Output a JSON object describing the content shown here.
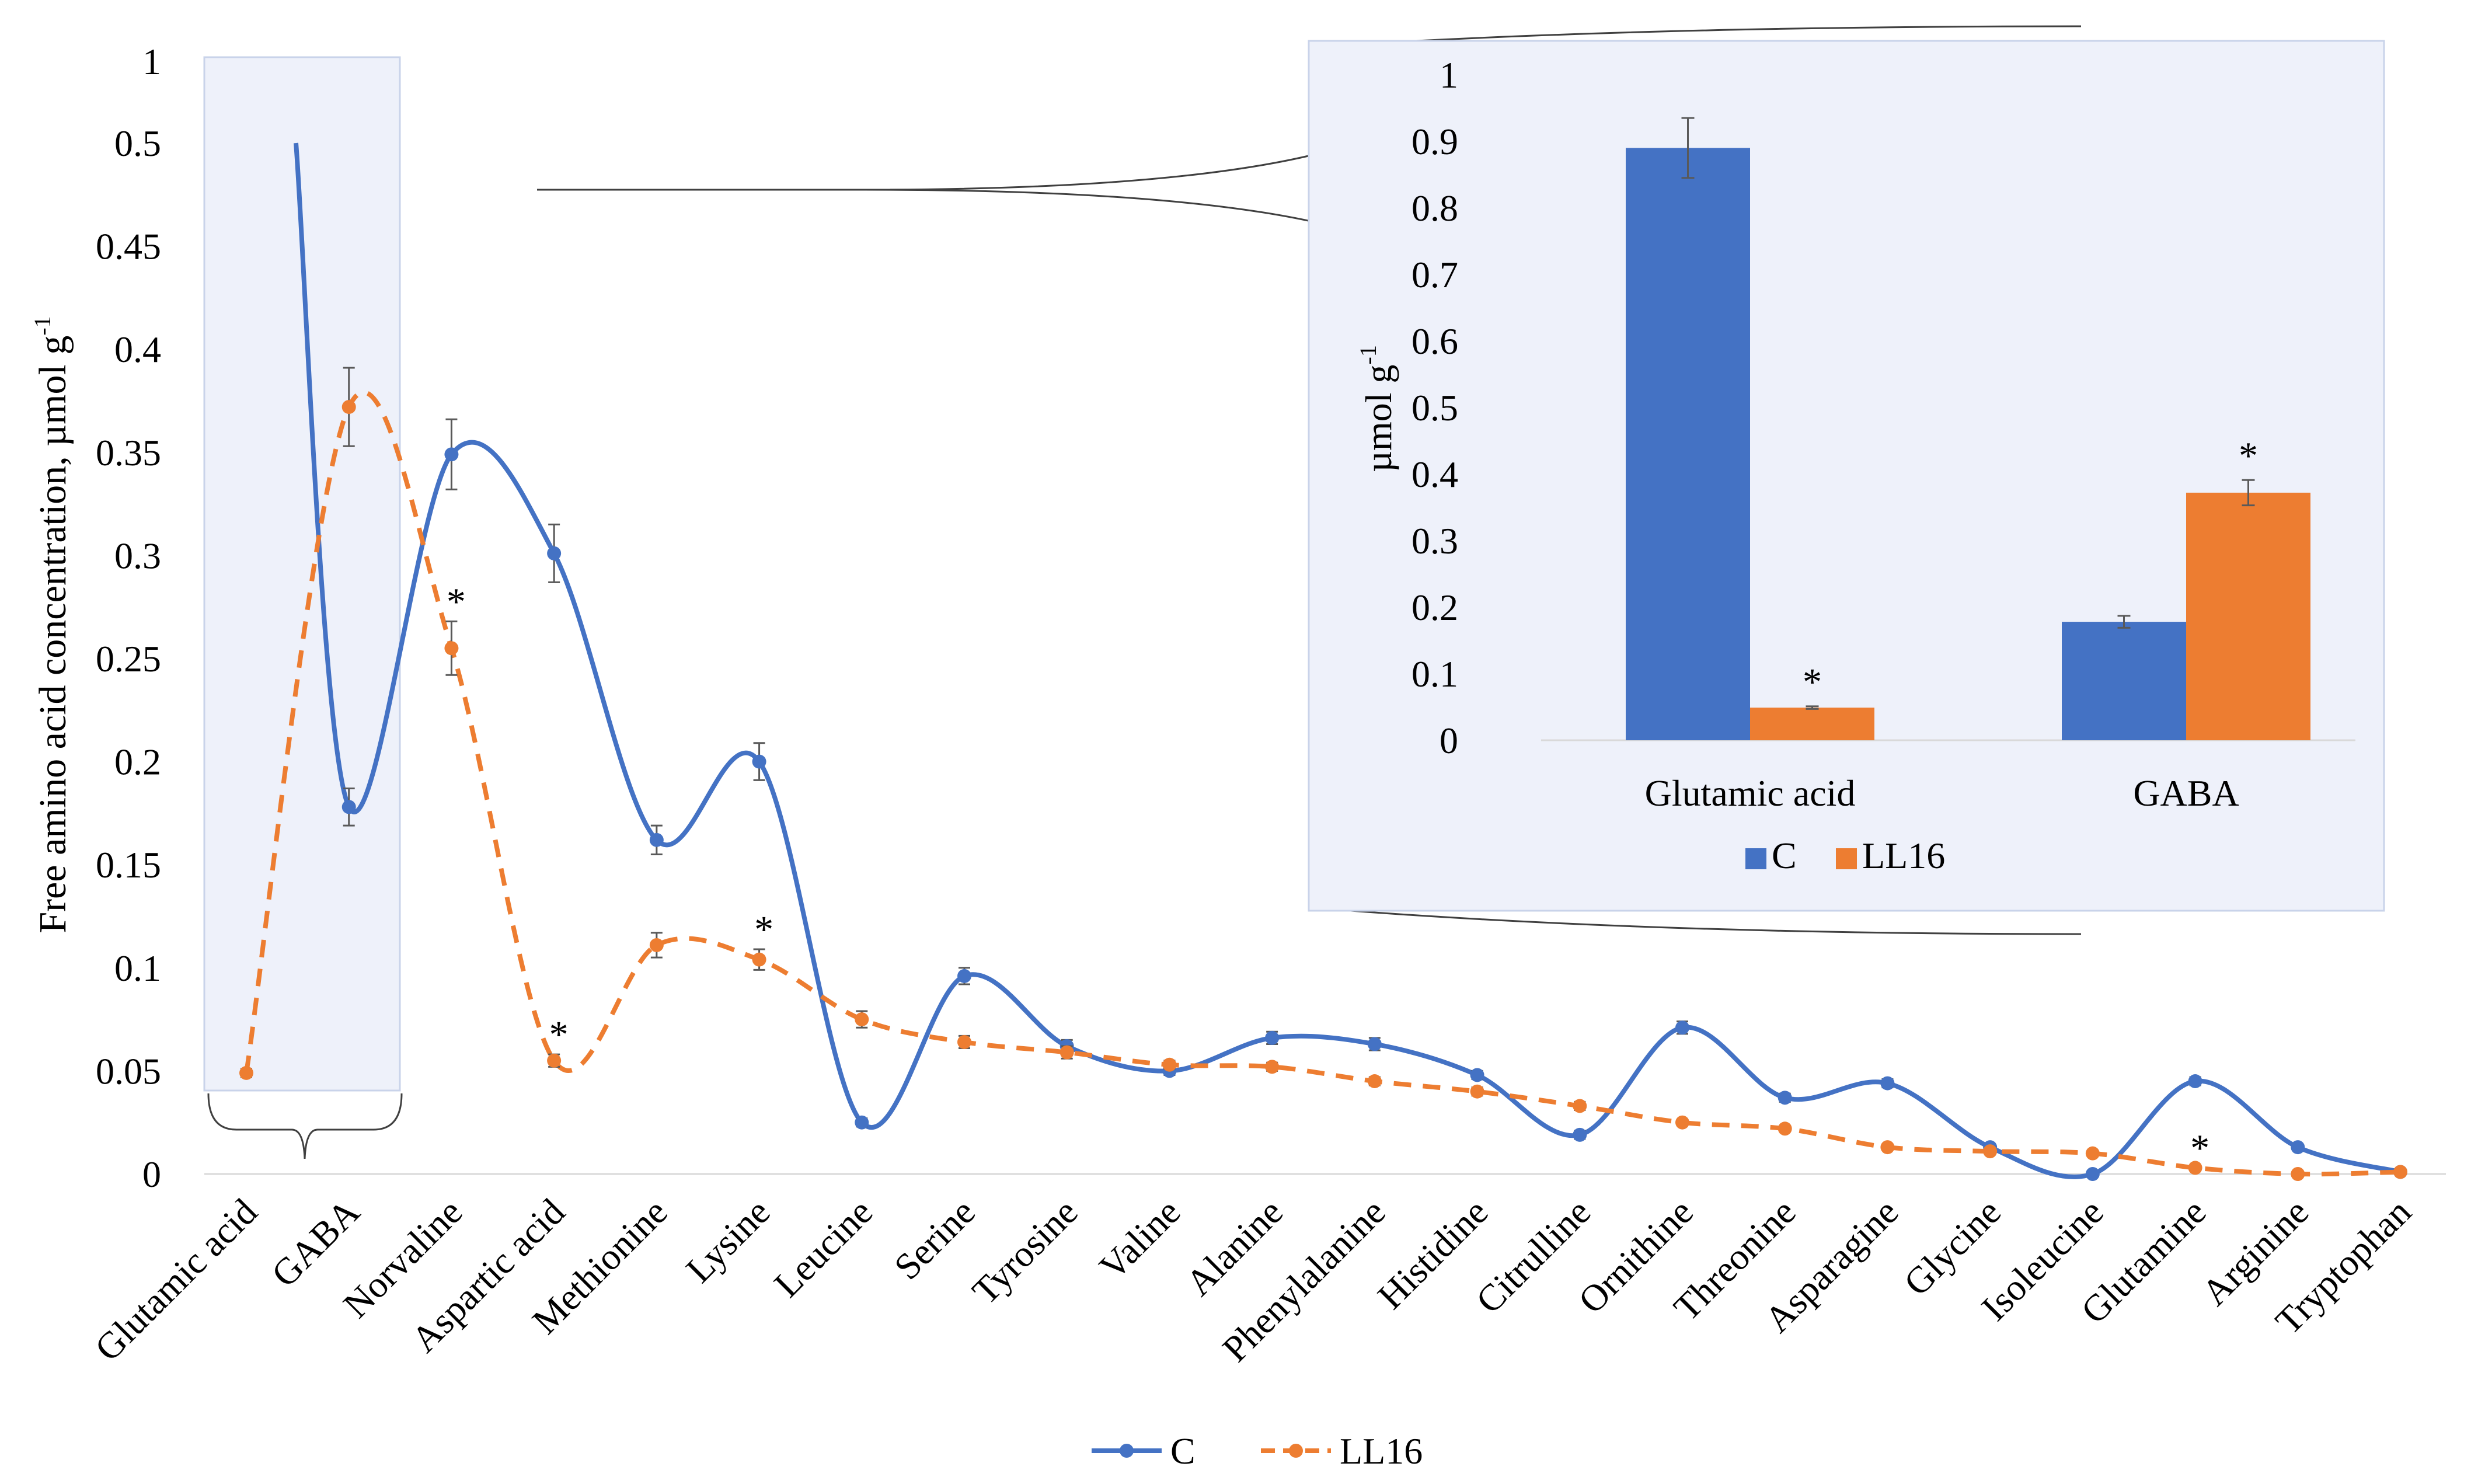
{
  "chart_data": [
    {
      "type": "line",
      "ylabel": "Free amino acid concentration, µmol g",
      "ylabel_superscript": "-1",
      "y_ticks": [
        "0",
        "0.05",
        "0.1",
        "0.15",
        "0.2",
        "0.25",
        "0.3",
        "0.35",
        "0.4",
        "0.45",
        "0.5",
        "1"
      ],
      "y_axis_break": {
        "from": 0.5,
        "to": 1
      },
      "categories": [
        "Glutamic acid",
        "GABA",
        "Norvaline",
        "Aspartic acid",
        "Methionine",
        "Lysine",
        "Leucine",
        "Serine",
        "Tyrosine",
        "Valine",
        "Alanine",
        "Phenylalanine",
        "Histidine",
        "Citrulline",
        "Ornithine",
        "Threonine",
        "Asparagine",
        "Glycine",
        "Isoleucine",
        "Glutamine",
        "Arginine",
        "Tryptophan"
      ],
      "series": [
        {
          "name": "C",
          "color": "#4472C4",
          "line_style": "solid",
          "values": [
            0.89,
            0.178,
            0.349,
            0.301,
            0.162,
            0.2,
            0.025,
            0.096,
            0.062,
            0.05,
            0.066,
            0.063,
            0.048,
            0.019,
            0.071,
            0.037,
            0.044,
            0.013,
            0.0,
            0.045,
            0.013,
            0.001
          ],
          "errors": [
            0.045,
            0.009,
            0.017,
            0.014,
            0.007,
            0.009,
            0.002,
            0.004,
            0.003,
            0.002,
            0.003,
            0.003,
            0.002,
            0.002,
            0.003,
            0.002,
            0.002,
            0.001,
            0.0,
            0.002,
            0.001,
            0.0
          ]
        },
        {
          "name": "LL16",
          "color": "#ED7D31",
          "line_style": "dashed",
          "values": [
            0.049,
            0.372,
            0.255,
            0.055,
            0.111,
            0.104,
            0.075,
            0.064,
            0.059,
            0.053,
            0.052,
            0.045,
            0.04,
            0.033,
            0.025,
            0.022,
            0.013,
            0.011,
            0.01,
            0.003,
            0.0,
            0.001
          ],
          "errors": [
            0.002,
            0.019,
            0.013,
            0.003,
            0.006,
            0.005,
            0.004,
            0.003,
            0.003,
            0.002,
            0.002,
            0.002,
            0.002,
            0.002,
            0.001,
            0.001,
            0.001,
            0.001,
            0.001,
            0.0,
            0.0,
            0.0
          ]
        }
      ],
      "significance_marks": [
        "Norvaline",
        "Aspartic acid",
        "Lysine",
        "Glutamine"
      ],
      "significance_symbol": "*",
      "legend": {
        "position": "bottom",
        "entries": [
          "C",
          "LL16"
        ]
      }
    },
    {
      "type": "bar",
      "ylabel": "µmol g",
      "ylabel_superscript": "-1",
      "ylim": [
        0,
        1
      ],
      "y_ticks": [
        "0",
        "0.1",
        "0.2",
        "0.3",
        "0.4",
        "0.5",
        "0.6",
        "0.7",
        "0.8",
        "0.9",
        "1"
      ],
      "categories": [
        "Glutamic acid",
        "GABA"
      ],
      "series": [
        {
          "name": "C",
          "color": "#4472C4",
          "values": [
            0.89,
            0.178
          ],
          "errors": [
            0.045,
            0.009
          ]
        },
        {
          "name": "LL16",
          "color": "#ED7D31",
          "values": [
            0.049,
            0.372
          ],
          "errors": [
            0.002,
            0.019
          ]
        }
      ],
      "significance_marks": [
        {
          "series": "LL16",
          "category": "Glutamic acid"
        },
        {
          "series": "LL16",
          "category": "GABA"
        }
      ],
      "significance_symbol": "*",
      "legend": {
        "position": "bottom",
        "entries": [
          "C",
          "LL16"
        ]
      }
    }
  ]
}
